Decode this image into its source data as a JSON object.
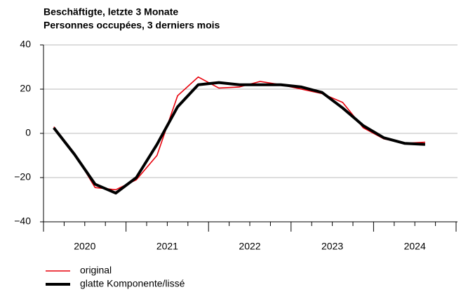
{
  "chart_data": {
    "type": "line",
    "title": "Beschäftigte, letzte 3 Monate",
    "subtitle": "Personnes occupées, 3 derniers mois",
    "categories": [
      "2020",
      "2021",
      "2022",
      "2023",
      "2024"
    ],
    "x": [
      2020.125,
      2020.375,
      2020.625,
      2020.875,
      2021.125,
      2021.375,
      2021.625,
      2021.875,
      2022.125,
      2022.375,
      2022.625,
      2022.875,
      2023.125,
      2023.375,
      2023.625,
      2023.875,
      2024.125,
      2024.375,
      2024.625
    ],
    "xlim": [
      2020,
      2025
    ],
    "xticks": [
      2020,
      2021,
      2022,
      2023,
      2024,
      2025
    ],
    "series": [
      {
        "name": "original",
        "color": "#e8000b",
        "values": [
          3,
          -9,
          -24.5,
          -25.5,
          -21,
          -10,
          17,
          25.5,
          20.5,
          21,
          23.5,
          22,
          20,
          18,
          14,
          2.5,
          -2.5,
          -4.5,
          -4
        ]
      },
      {
        "name": "glatte Komponente/lissé",
        "color": "#000000",
        "values": [
          2.5,
          -9.5,
          -23,
          -27,
          -20,
          -5,
          12,
          22,
          23,
          22,
          22,
          22,
          21,
          18.5,
          11.5,
          3.5,
          -2,
          -4.5,
          -5
        ]
      }
    ],
    "ylim": [
      -40,
      40
    ],
    "yticks": [
      {
        "value": -40,
        "label": "−40"
      },
      {
        "value": -20,
        "label": "−20"
      },
      0,
      20,
      40
    ],
    "grid": true
  }
}
